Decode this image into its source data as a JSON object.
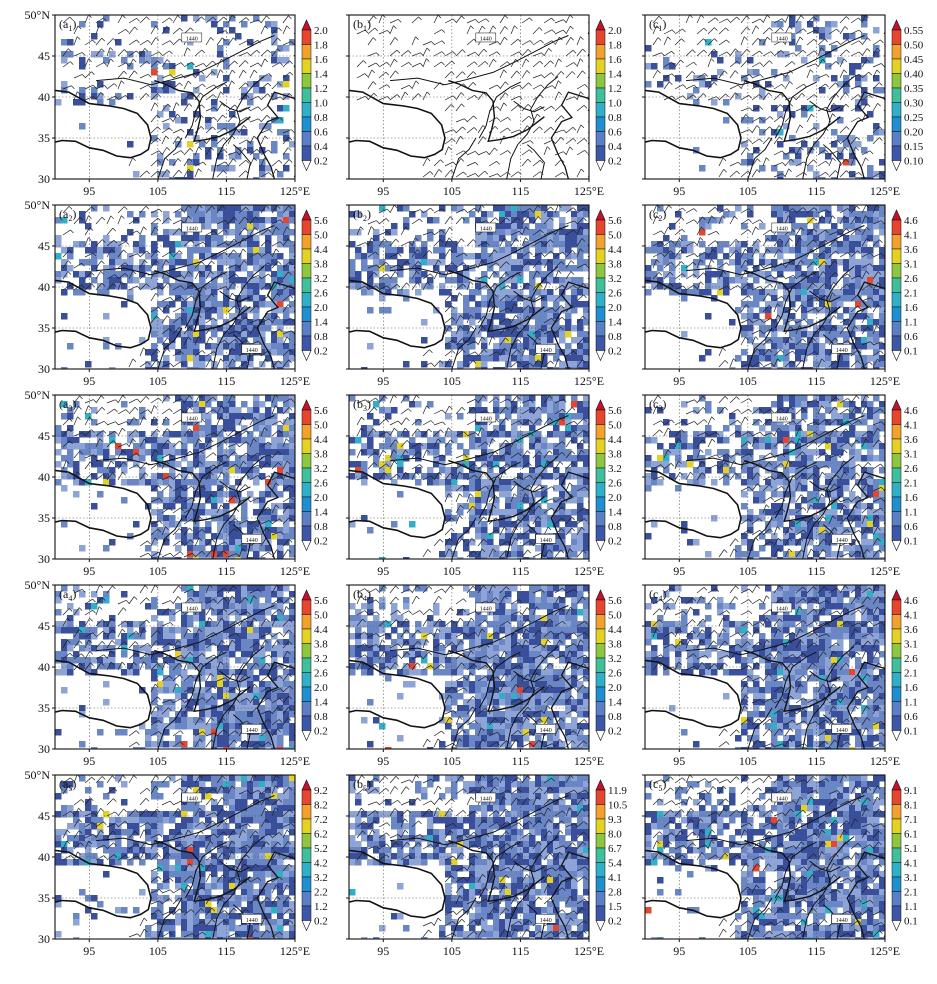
{
  "colors": {
    "cb": [
      "#2a3b8f",
      "#3c57a8",
      "#5a7fc4",
      "#1f8fd0",
      "#2fb0c8",
      "#3fbf9a",
      "#8dc63f",
      "#e4d223",
      "#f2a12c",
      "#e5462d",
      "#c8102e"
    ],
    "map_lo": "#3a4f9c",
    "map_mid": "#6a86c4",
    "map_hi": "#8ea3d6"
  },
  "chart_data": {
    "type": "heatmap",
    "description_axes": {
      "x_ticks": [
        "95",
        "105",
        "115",
        "125°E"
      ],
      "y_ticks": [
        "50°N",
        "45",
        "40",
        "35",
        "30"
      ],
      "xlim": [
        90,
        125
      ],
      "ylim": [
        30,
        50
      ]
    },
    "contour_label": "1440",
    "panels": [
      {
        "label": "a",
        "sub": "1",
        "row": 0,
        "col": 0,
        "colorbar": [
          "2.0",
          "1.8",
          "1.6",
          "1.4",
          "1.2",
          "1.0",
          "0.8",
          "0.6",
          "0.4",
          "0.2"
        ]
      },
      {
        "label": "b",
        "sub": "1",
        "row": 0,
        "col": 1,
        "colorbar": [
          "2.0",
          "1.8",
          "1.6",
          "1.4",
          "1.2",
          "1.0",
          "0.8",
          "0.6",
          "0.4",
          "0.2"
        ]
      },
      {
        "label": "c",
        "sub": "1",
        "row": 0,
        "col": 2,
        "colorbar": [
          "0.55",
          "0.50",
          "0.45",
          "0.40",
          "0.35",
          "0.30",
          "0.25",
          "0.20",
          "0.15",
          "0.10"
        ]
      },
      {
        "label": "a",
        "sub": "2",
        "row": 1,
        "col": 0,
        "colorbar": [
          "5.6",
          "5.0",
          "4.4",
          "3.8",
          "3.2",
          "2.6",
          "2.0",
          "1.4",
          "0.8",
          "0.2"
        ]
      },
      {
        "label": "b",
        "sub": "2",
        "row": 1,
        "col": 1,
        "colorbar": [
          "5.6",
          "5.0",
          "4.4",
          "3.8",
          "3.2",
          "2.6",
          "2.0",
          "1.4",
          "0.8",
          "0.2"
        ]
      },
      {
        "label": "c",
        "sub": "2",
        "row": 1,
        "col": 2,
        "colorbar": [
          "4.6",
          "4.1",
          "3.6",
          "3.1",
          "2.6",
          "2.1",
          "1.6",
          "1.1",
          "0.6",
          "0.1"
        ]
      },
      {
        "label": "a",
        "sub": "3",
        "row": 2,
        "col": 0,
        "colorbar": [
          "5.6",
          "5.0",
          "4.4",
          "3.8",
          "3.2",
          "2.6",
          "2.0",
          "1.4",
          "0.8",
          "0.2"
        ]
      },
      {
        "label": "b",
        "sub": "3",
        "row": 2,
        "col": 1,
        "colorbar": [
          "5.6",
          "5.0",
          "4.4",
          "3.8",
          "3.2",
          "2.6",
          "2.0",
          "1.4",
          "0.8",
          "0.2"
        ]
      },
      {
        "label": "c",
        "sub": "3",
        "row": 2,
        "col": 2,
        "colorbar": [
          "4.6",
          "4.1",
          "3.6",
          "3.1",
          "2.6",
          "2.1",
          "1.6",
          "1.1",
          "0.6",
          "0.1"
        ]
      },
      {
        "label": "a",
        "sub": "4",
        "row": 3,
        "col": 0,
        "colorbar": [
          "5.6",
          "5.0",
          "4.4",
          "3.8",
          "3.2",
          "2.6",
          "2.0",
          "1.4",
          "0.8",
          "0.2"
        ]
      },
      {
        "label": "b",
        "sub": "4",
        "row": 3,
        "col": 1,
        "colorbar": [
          "5.6",
          "5.0",
          "4.4",
          "3.8",
          "3.2",
          "2.6",
          "2.0",
          "1.4",
          "0.8",
          "0.2"
        ]
      },
      {
        "label": "c",
        "sub": "4",
        "row": 3,
        "col": 2,
        "colorbar": [
          "4.6",
          "4.1",
          "3.6",
          "3.1",
          "2.6",
          "2.1",
          "1.6",
          "1.1",
          "0.6",
          "0.1"
        ]
      },
      {
        "label": "a",
        "sub": "5",
        "row": 4,
        "col": 0,
        "colorbar": [
          "9.2",
          "8.2",
          "7.2",
          "6.2",
          "5.2",
          "4.2",
          "3.2",
          "2.2",
          "1.2",
          "0.2"
        ]
      },
      {
        "label": "b",
        "sub": "5",
        "row": 4,
        "col": 1,
        "colorbar": [
          "11.9",
          "10.5",
          "9.3",
          "8.0",
          "6.7",
          "5.4",
          "4.1",
          "2.8",
          "1.5",
          "0.2"
        ]
      },
      {
        "label": "c",
        "sub": "5",
        "row": 4,
        "col": 2,
        "colorbar": [
          "9.1",
          "8.1",
          "7.1",
          "6.1",
          "5.1",
          "4.1",
          "3.1",
          "2.1",
          "1.1",
          "0.1"
        ]
      }
    ]
  }
}
